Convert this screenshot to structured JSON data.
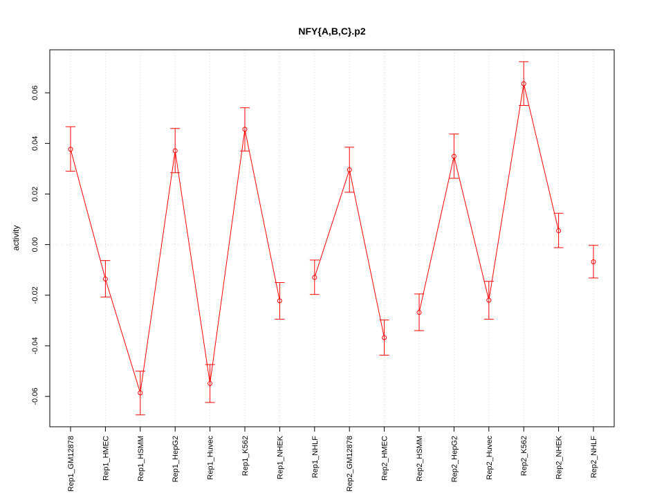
{
  "chart_data": {
    "type": "line",
    "title": "NFY{A,B,C}.p2",
    "xlabel": "",
    "ylabel": "activity",
    "ylim": [
      -0.072,
      0.077
    ],
    "yticks": [
      -0.06,
      -0.04,
      -0.02,
      0.0,
      0.02,
      0.04,
      0.06
    ],
    "ytick_labels": [
      "-0.06",
      "-0.04",
      "-0.02",
      "0.00",
      "0.02",
      "0.04",
      "0.06"
    ],
    "grid": true,
    "series_color": "#ff0000",
    "grid_color": "#d3d3d3",
    "categories": [
      "Rep1_GM12878",
      "Rep1_HMEC",
      "Rep1_HSMM",
      "Rep1_HepG2",
      "Rep1_Huvec",
      "Rep1_K562",
      "Rep1_NHEK",
      "Rep1_NHLF",
      "Rep2_GM12878",
      "Rep2_HMEC",
      "Rep2_HSMM",
      "Rep2_HepG2",
      "Rep2_Huvec",
      "Rep2_K562",
      "Rep2_NHEK",
      "Rep2_NHLF"
    ],
    "values": [
      0.0377,
      -0.0136,
      -0.0586,
      0.0371,
      -0.0549,
      0.0456,
      -0.0222,
      -0.013,
      0.0296,
      -0.0368,
      -0.0268,
      0.0349,
      -0.022,
      0.0636,
      0.0055,
      -0.0068
    ],
    "error_low": [
      0.029,
      -0.0207,
      -0.0673,
      0.0284,
      -0.0624,
      0.037,
      -0.0295,
      -0.0197,
      0.0207,
      -0.0437,
      -0.034,
      0.0262,
      -0.0295,
      0.055,
      -0.0012,
      -0.0132
    ],
    "error_high": [
      0.0466,
      -0.0063,
      -0.05,
      0.0459,
      -0.0474,
      0.0541,
      -0.015,
      -0.0061,
      0.0385,
      -0.0298,
      -0.0195,
      0.0437,
      -0.0145,
      0.0723,
      0.0124,
      -0.0003
    ],
    "connect_after": [
      true,
      true,
      true,
      true,
      true,
      true,
      false,
      true,
      true,
      false,
      true,
      true,
      true,
      true,
      false
    ]
  }
}
